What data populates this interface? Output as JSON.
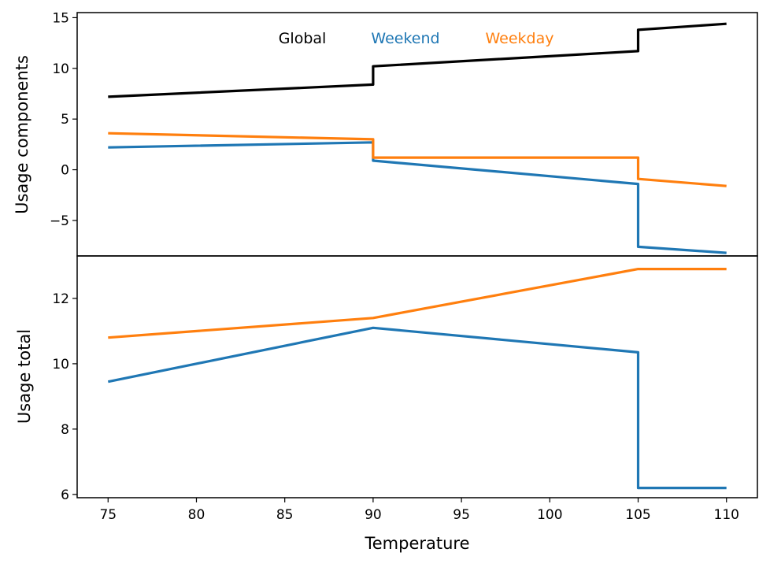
{
  "chart_data": [
    {
      "type": "line",
      "panel": "top",
      "ylabel": "Usage components",
      "ylim": [
        -8.5,
        15.5
      ],
      "yticks": [
        15,
        10,
        5,
        0,
        -5
      ],
      "ytick_labels": [
        "15",
        "10",
        "5",
        "0",
        "−5"
      ],
      "legend": [
        {
          "label": "Global",
          "color": "#000000"
        },
        {
          "label": "Weekend",
          "color": "#1f77b4"
        },
        {
          "label": "Weekday",
          "color": "#ff7f0e"
        }
      ],
      "legend_position": "top-center",
      "series": [
        {
          "name": "Global",
          "color": "#000000",
          "x": [
            75,
            90,
            90,
            105,
            105,
            110
          ],
          "y": [
            7.2,
            8.4,
            10.2,
            11.7,
            13.8,
            14.4
          ]
        },
        {
          "name": "Weekend",
          "color": "#1f77b4",
          "x": [
            75,
            90,
            90,
            105,
            105,
            110
          ],
          "y": [
            2.2,
            2.7,
            0.9,
            -1.4,
            -7.6,
            -8.2
          ]
        },
        {
          "name": "Weekday",
          "color": "#ff7f0e",
          "x": [
            75,
            90,
            90,
            105,
            105,
            110
          ],
          "y": [
            3.6,
            3.0,
            1.2,
            1.2,
            -0.9,
            -1.6
          ]
        }
      ]
    },
    {
      "type": "line",
      "panel": "bottom",
      "xlabel": "Temperature",
      "ylabel": "Usage total",
      "ylim": [
        5.9,
        13.3
      ],
      "yticks": [
        12,
        10,
        8,
        6
      ],
      "ytick_labels": [
        "12",
        "10",
        "8",
        "6"
      ],
      "xlim": [
        73.25,
        111.75
      ],
      "xticks": [
        75,
        80,
        85,
        90,
        95,
        100,
        105,
        110
      ],
      "xtick_labels": [
        "75",
        "80",
        "85",
        "90",
        "95",
        "100",
        "105",
        "110"
      ],
      "series": [
        {
          "name": "Weekday",
          "color": "#ff7f0e",
          "x": [
            75,
            90,
            105,
            110
          ],
          "y": [
            10.8,
            11.4,
            12.9,
            12.9
          ]
        },
        {
          "name": "Weekend",
          "color": "#1f77b4",
          "x": [
            75,
            90,
            105,
            105,
            110
          ],
          "y": [
            9.45,
            11.1,
            10.35,
            6.2,
            6.2
          ]
        }
      ]
    }
  ]
}
